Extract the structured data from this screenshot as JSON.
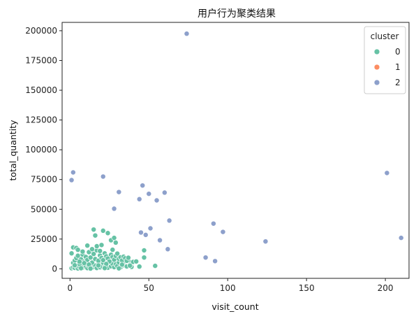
{
  "chart_data": {
    "type": "scatter",
    "title": "用户行为聚类结果",
    "xlabel": "visit_count",
    "ylabel": "total_quantity",
    "xlim": [
      -5,
      215
    ],
    "ylim": [
      -8000,
      207000
    ],
    "xticks": [
      0,
      50,
      100,
      150,
      200
    ],
    "yticks": [
      0,
      25000,
      50000,
      75000,
      100000,
      125000,
      150000,
      175000,
      200000
    ],
    "legend": {
      "title": "cluster",
      "placement": "top-right"
    },
    "series": [
      {
        "name": "0",
        "color": "#66c2a5",
        "points": [
          [
            1,
            500
          ],
          [
            2,
            1200
          ],
          [
            3,
            800
          ],
          [
            4,
            2000
          ],
          [
            5,
            300
          ],
          [
            6,
            1500
          ],
          [
            7,
            2500
          ],
          [
            8,
            900
          ],
          [
            9,
            3000
          ],
          [
            10,
            1800
          ],
          [
            11,
            600
          ],
          [
            12,
            2200
          ],
          [
            13,
            4000
          ],
          [
            14,
            1000
          ],
          [
            15,
            3500
          ],
          [
            16,
            2800
          ],
          [
            17,
            700
          ],
          [
            18,
            4500
          ],
          [
            19,
            1300
          ],
          [
            20,
            2600
          ],
          [
            21,
            5000
          ],
          [
            22,
            1700
          ],
          [
            23,
            3200
          ],
          [
            24,
            900
          ],
          [
            25,
            6000
          ],
          [
            26,
            2100
          ],
          [
            27,
            4200
          ],
          [
            28,
            1400
          ],
          [
            29,
            3800
          ],
          [
            30,
            2400
          ],
          [
            31,
            5500
          ],
          [
            32,
            1100
          ],
          [
            33,
            4700
          ],
          [
            34,
            3000
          ],
          [
            35,
            6500
          ],
          [
            36,
            2000
          ],
          [
            37,
            7000
          ],
          [
            38,
            3300
          ],
          [
            39,
            1600
          ],
          [
            40,
            5800
          ],
          [
            2,
            5000
          ],
          [
            3,
            7000
          ],
          [
            4,
            9000
          ],
          [
            5,
            11000
          ],
          [
            6,
            4000
          ],
          [
            7,
            8000
          ],
          [
            8,
            12000
          ],
          [
            9,
            6000
          ],
          [
            10,
            10000
          ],
          [
            11,
            7500
          ],
          [
            12,
            14000
          ],
          [
            13,
            9500
          ],
          [
            14,
            5200
          ],
          [
            15,
            12500
          ],
          [
            16,
            8200
          ],
          [
            17,
            15500
          ],
          [
            18,
            6800
          ],
          [
            19,
            11200
          ],
          [
            20,
            9100
          ],
          [
            21,
            7300
          ],
          [
            22,
            13000
          ],
          [
            23,
            10500
          ],
          [
            24,
            8700
          ],
          [
            25,
            6200
          ],
          [
            26,
            11800
          ],
          [
            27,
            9900
          ],
          [
            28,
            7700
          ],
          [
            29,
            10800
          ],
          [
            30,
            12800
          ],
          [
            31,
            8400
          ],
          [
            32,
            9700
          ],
          [
            33,
            7100
          ],
          [
            34,
            10200
          ],
          [
            35,
            8900
          ],
          [
            36,
            6700
          ],
          [
            37,
            9300
          ],
          [
            1,
            13000
          ],
          [
            2,
            18000
          ],
          [
            4,
            17500
          ],
          [
            5,
            16000
          ],
          [
            8,
            14500
          ],
          [
            11,
            19500
          ],
          [
            14,
            16500
          ],
          [
            15,
            33000
          ],
          [
            16,
            28000
          ],
          [
            17,
            19000
          ],
          [
            19,
            15000
          ],
          [
            20,
            20000
          ],
          [
            21,
            32000
          ],
          [
            24,
            30000
          ],
          [
            26,
            24000
          ],
          [
            27,
            16000
          ],
          [
            28,
            26000
          ],
          [
            29,
            22000
          ],
          [
            47,
            15500
          ],
          [
            47,
            9500
          ],
          [
            54,
            2500
          ],
          [
            3,
            3000
          ],
          [
            6,
            6000
          ],
          [
            9,
            4800
          ],
          [
            12,
            3600
          ],
          [
            18,
            2900
          ],
          [
            23,
            4100
          ],
          [
            33,
            3500
          ],
          [
            38,
            2700
          ],
          [
            42,
            6200
          ],
          [
            44,
            1900
          ],
          [
            7,
            500
          ],
          [
            13,
            200
          ],
          [
            22,
            600
          ],
          [
            31,
            400
          ]
        ]
      },
      {
        "name": "1",
        "color": "#fc8d62",
        "points": []
      },
      {
        "name": "2",
        "color": "#8da0cb",
        "points": [
          [
            74,
            197500
          ],
          [
            2,
            81000
          ],
          [
            1,
            74500
          ],
          [
            21,
            77500
          ],
          [
            31,
            64500
          ],
          [
            46,
            70000
          ],
          [
            50,
            63000
          ],
          [
            44,
            58500
          ],
          [
            28,
            50500
          ],
          [
            55,
            57500
          ],
          [
            60,
            64000
          ],
          [
            201,
            80500
          ],
          [
            63,
            40500
          ],
          [
            91,
            38000
          ],
          [
            97,
            31000
          ],
          [
            45,
            30500
          ],
          [
            48,
            28500
          ],
          [
            51,
            34000
          ],
          [
            57,
            24000
          ],
          [
            62,
            16500
          ],
          [
            86,
            9500
          ],
          [
            92,
            6500
          ],
          [
            124,
            23000
          ],
          [
            210,
            26000
          ]
        ]
      }
    ]
  }
}
